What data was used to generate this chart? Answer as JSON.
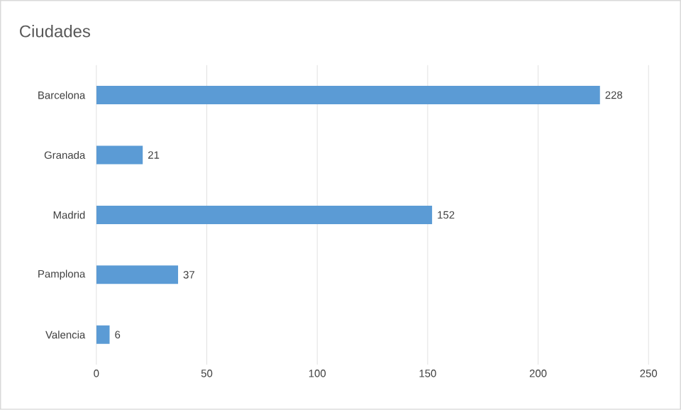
{
  "chart_data": {
    "type": "bar",
    "orientation": "horizontal",
    "title": "Ciudades",
    "categories": [
      "Barcelona",
      "Granada",
      "Madrid",
      "Pamplona",
      "Valencia"
    ],
    "values": [
      228,
      21,
      152,
      37,
      6
    ],
    "color": "#5b9bd5",
    "xlim": [
      0,
      250
    ],
    "xticks": [
      0,
      50,
      100,
      150,
      200,
      250
    ],
    "grid": "x",
    "data_labels": true
  }
}
